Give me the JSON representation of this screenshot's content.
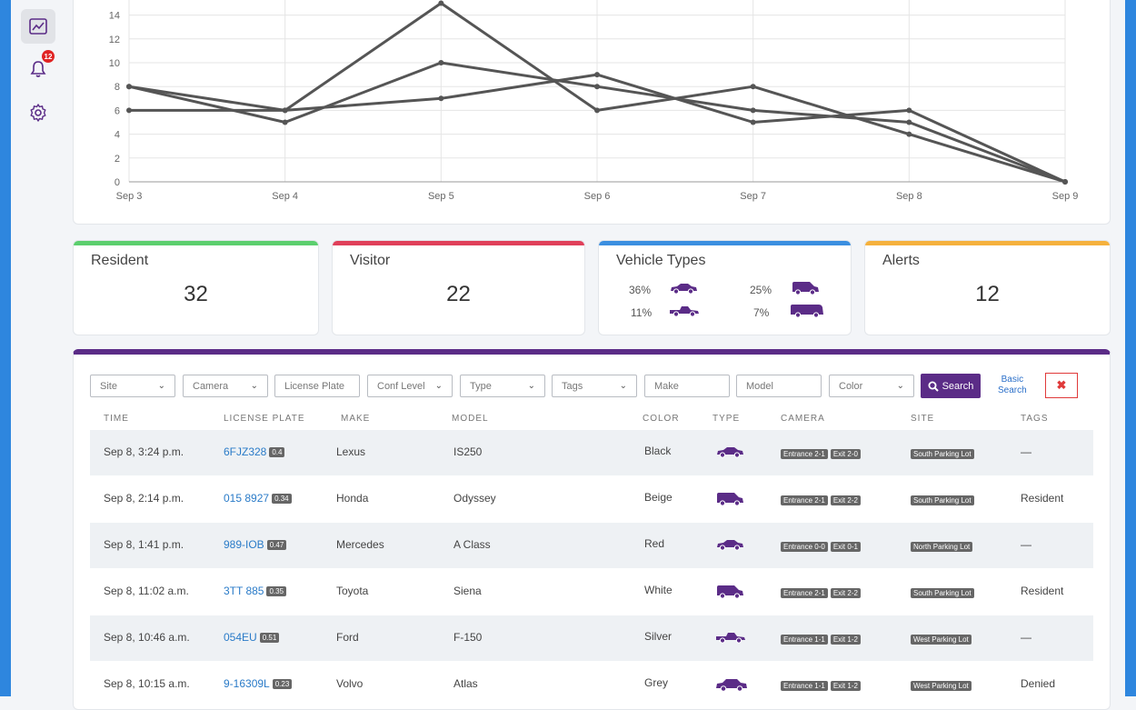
{
  "sidebar": {
    "alerts_badge": "12"
  },
  "chart_data": {
    "type": "line",
    "categories": [
      "Sep 3",
      "Sep 4",
      "Sep 5",
      "Sep 6",
      "Sep 7",
      "Sep 8",
      "Sep 9"
    ],
    "y_ticks": [
      "0",
      "2",
      "4",
      "6",
      "8",
      "10",
      "12",
      "14"
    ],
    "ylim": [
      0,
      15
    ],
    "grid": true,
    "series": [
      {
        "values": [
          8,
          6,
          15,
          6,
          8,
          4,
          0
        ]
      },
      {
        "values": [
          8,
          5,
          10,
          8,
          6,
          5,
          0
        ]
      },
      {
        "values": [
          6,
          6,
          7,
          9,
          5,
          6,
          0
        ]
      }
    ]
  },
  "cards": {
    "resident": {
      "title": "Resident",
      "value": "32",
      "color": "#5ccf6e"
    },
    "visitor": {
      "title": "Visitor",
      "value": "22",
      "color": "#e0405a"
    },
    "vehicle_types": {
      "title": "Vehicle Types",
      "color": "#3b8fe0",
      "items": [
        {
          "pct": "36%",
          "icon": "sedan-icon"
        },
        {
          "pct": "25%",
          "icon": "van-icon"
        },
        {
          "pct": "11%",
          "icon": "pickup-icon"
        },
        {
          "pct": "7%",
          "icon": "bus-icon"
        }
      ]
    },
    "alerts": {
      "title": "Alerts",
      "value": "12",
      "color": "#f5b13d"
    }
  },
  "filters": {
    "site": "Site",
    "camera": "Camera",
    "license_plate": "License Plate",
    "conf_level": "Conf Level",
    "type": "Type",
    "tags": "Tags",
    "make": "Make",
    "model": "Model",
    "color": "Color",
    "search": "Search",
    "basic_search_1": "Basic",
    "basic_search_2": "Search"
  },
  "columns": {
    "time": "TIME",
    "plate": "LICENSE PLATE",
    "make": "MAKE",
    "model": "MODEL",
    "color": "COLOR",
    "type": "TYPE",
    "camera": "CAMERA",
    "site": "SITE",
    "tags": "TAGS"
  },
  "rows": [
    {
      "time": "Sep 8, 3:24 p.m.",
      "plate": "6FJZ328",
      "conf": "0.4",
      "make": "Lexus",
      "model": "IS250",
      "color": "Black",
      "type": "sedan-icon",
      "cam1": "Entrance 2-1",
      "cam2": "Exit 2-0",
      "site": "South Parking Lot",
      "tags": "—"
    },
    {
      "time": "Sep 8, 2:14 p.m.",
      "plate": "015 8927",
      "conf": "0.34",
      "make": "Honda",
      "model": "Odyssey",
      "color": "Beige",
      "type": "van-icon",
      "cam1": "Entrance 2-1",
      "cam2": "Exit 2-2",
      "site": "South Parking Lot",
      "tags": "Resident"
    },
    {
      "time": "Sep 8, 1:41 p.m.",
      "plate": "989-IOB",
      "conf": "0.47",
      "make": "Mercedes",
      "model": "A Class",
      "color": "Red",
      "type": "sedan-icon",
      "cam1": "Entrance 0-0",
      "cam2": "Exit 0-1",
      "site": "North Parking Lot",
      "tags": "—"
    },
    {
      "time": "Sep 8, 11:02 a.m.",
      "plate": "3TT 885",
      "conf": "0.35",
      "make": "Toyota",
      "model": "Siena",
      "color": "White",
      "type": "van-icon",
      "cam1": "Entrance 2-1",
      "cam2": "Exit 2-2",
      "site": "South Parking Lot",
      "tags": "Resident"
    },
    {
      "time": "Sep 8, 10:46 a.m.",
      "plate": "054EU",
      "conf": "0.51",
      "make": "Ford",
      "model": "F-150",
      "color": "Silver",
      "type": "pickup-icon",
      "cam1": "Entrance 1-1",
      "cam2": "Exit 1-2",
      "site": "West Parking Lot",
      "tags": "—"
    },
    {
      "time": "Sep 8, 10:15 a.m.",
      "plate": "9-16309L",
      "conf": "0.23",
      "make": "Volvo",
      "model": "Atlas",
      "color": "Grey",
      "type": "suv-icon",
      "cam1": "Entrance 1-1",
      "cam2": "Exit 1-2",
      "site": "West Parking Lot",
      "tags": "Denied"
    }
  ]
}
